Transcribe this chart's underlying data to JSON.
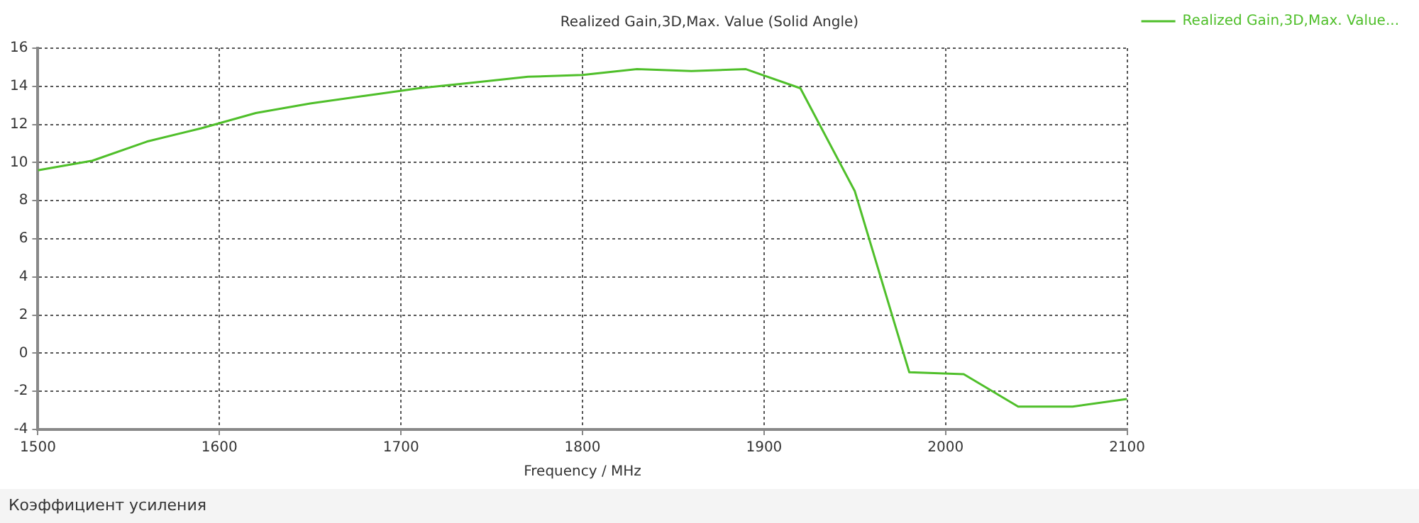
{
  "chart_data": {
    "type": "line",
    "title": "Realized Gain,3D,Max. Value (Solid Angle)",
    "xlabel": "Frequency / MHz",
    "x": [
      1500,
      1530,
      1560,
      1590,
      1620,
      1650,
      1680,
      1710,
      1740,
      1770,
      1800,
      1830,
      1860,
      1890,
      1920,
      1950,
      1980,
      2010,
      2040,
      2070,
      2100
    ],
    "series": [
      {
        "name": "Realized Gain,3D,Max. Value...",
        "color": "#4fbf2a",
        "values": [
          9.6,
          10.1,
          11.1,
          11.8,
          12.6,
          13.1,
          13.5,
          13.9,
          14.2,
          14.5,
          14.6,
          14.9,
          14.8,
          14.9,
          13.9,
          8.5,
          -1.0,
          -1.1,
          -2.8,
          -2.8,
          -2.4
        ]
      }
    ],
    "xlim": [
      1500,
      2100
    ],
    "xticks": [
      1500,
      1600,
      1700,
      1800,
      1900,
      2000,
      2100
    ],
    "ylim": [
      -4,
      16
    ],
    "yticks": [
      -4,
      -2,
      0,
      2,
      4,
      6,
      8,
      10,
      12,
      14,
      16
    ],
    "grid": true,
    "legend": "top right",
    "marker": "none",
    "line_style": "solid",
    "annotations": [
      "Коэффициент усиления"
    ]
  }
}
